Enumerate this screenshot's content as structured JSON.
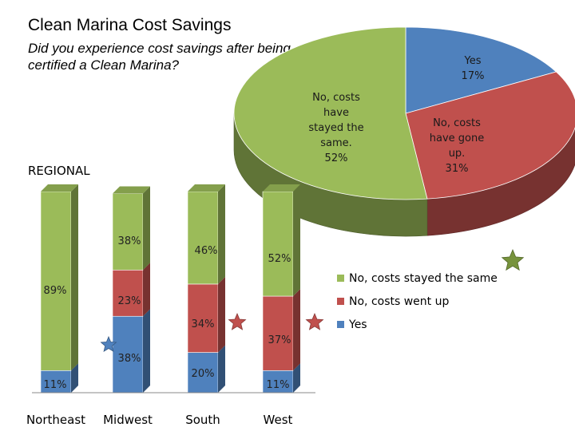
{
  "title": "Clean Marina Cost Savings",
  "subtitle": "Did you experience cost savings after being certified a Clean Marina?",
  "regional_label": "REGIONAL",
  "colors": {
    "same": "#9BBB59",
    "up": "#C0504D",
    "yes": "#4F81BD",
    "star_blue": "#4F81BD",
    "star_red": "#C0504D",
    "star_green": "#77933C"
  },
  "chart_data": [
    {
      "type": "pie",
      "title": "Did you experience cost savings after being certified a Clean Marina?",
      "slices": [
        {
          "key": "yes",
          "label": "Yes 17%",
          "value": 17
        },
        {
          "key": "up",
          "label": "No, costs have gone up. 31%",
          "value": 31
        },
        {
          "key": "same",
          "label": "No, costs have stayed the same. 52%",
          "value": 52
        }
      ]
    },
    {
      "type": "bar",
      "title": "REGIONAL",
      "stacked": true,
      "categories": [
        "Northeast",
        "Midwest",
        "South",
        "West"
      ],
      "series": [
        {
          "key": "yes",
          "name": "Yes",
          "values": [
            11,
            38,
            20,
            11
          ],
          "labels": [
            "11%",
            "38%",
            "20%",
            "11%"
          ]
        },
        {
          "key": "up",
          "name": "No, costs went up",
          "values": [
            0,
            23,
            34,
            37
          ],
          "labels": [
            "",
            "23%",
            "34%",
            "37%"
          ]
        },
        {
          "key": "same",
          "name": "No, costs stayed the same",
          "values": [
            89,
            38,
            46,
            52
          ],
          "labels": [
            "89%",
            "38%",
            "46%",
            "52%"
          ]
        }
      ],
      "legend": [
        {
          "key": "same",
          "label": "No, costs stayed the same"
        },
        {
          "key": "up",
          "label": "No, costs went up"
        },
        {
          "key": "yes",
          "label": "Yes"
        }
      ],
      "ylim": [
        0,
        100
      ]
    }
  ]
}
